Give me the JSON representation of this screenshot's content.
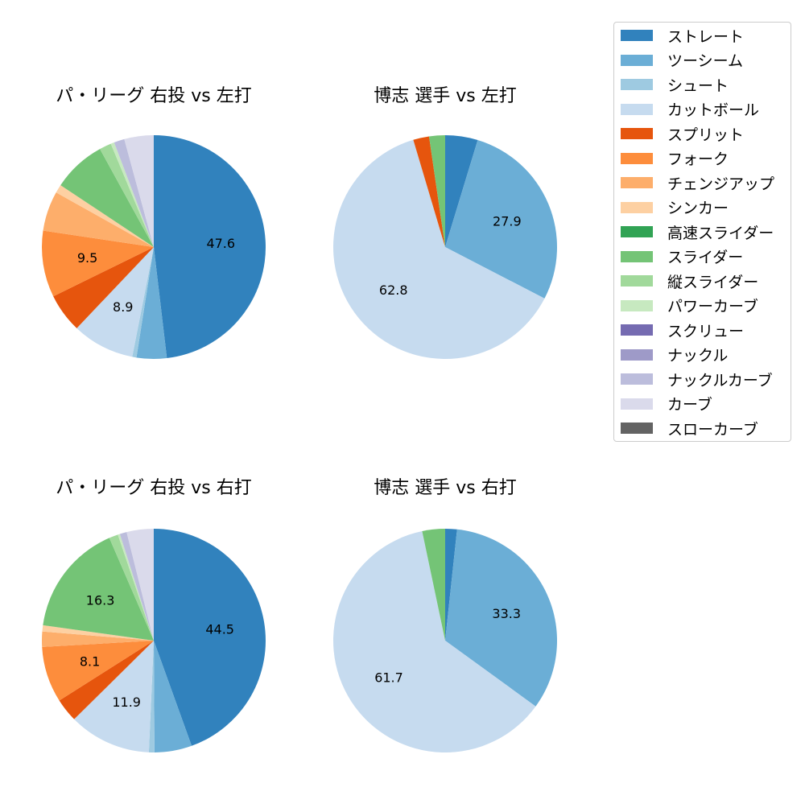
{
  "colors": {
    "ストレート": "#3182bd",
    "ツーシーム": "#6baed6",
    "シュート": "#9ecae1",
    "カットボール": "#c6dbef",
    "スプリット": "#e6550d",
    "フォーク": "#fd8d3c",
    "チェンジアップ": "#fdae6b",
    "シンカー": "#fdd0a2",
    "高速スライダー": "#31a354",
    "スライダー": "#74c476",
    "縦スライダー": "#a1d99b",
    "パワーカーブ": "#c7e9c0",
    "スクリュー": "#756bb1",
    "ナックル": "#9e9ac8",
    "ナックルカーブ": "#bcbddc",
    "カーブ": "#dadaeb",
    "スローカーブ": "#636363"
  },
  "legend": {
    "items": [
      "ストレート",
      "ツーシーム",
      "シュート",
      "カットボール",
      "スプリット",
      "フォーク",
      "チェンジアップ",
      "シンカー",
      "高速スライダー",
      "スライダー",
      "縦スライダー",
      "パワーカーブ",
      "スクリュー",
      "ナックル",
      "ナックルカーブ",
      "カーブ",
      "スローカーブ"
    ]
  },
  "chart_data": [
    {
      "type": "pie",
      "title": "パ・リーグ 右投 vs 左打",
      "start_angle_deg": 90,
      "direction": "clockwise",
      "slices": [
        {
          "name": "ストレート",
          "value": 47.6,
          "label": "47.6"
        },
        {
          "name": "ツーシーム",
          "value": 4.3
        },
        {
          "name": "シュート",
          "value": 0.6
        },
        {
          "name": "カットボール",
          "value": 8.9,
          "label": "8.9"
        },
        {
          "name": "スプリット",
          "value": 5.6
        },
        {
          "name": "フォーク",
          "value": 9.5,
          "label": "9.5"
        },
        {
          "name": "チェンジアップ",
          "value": 5.7
        },
        {
          "name": "シンカー",
          "value": 1.2
        },
        {
          "name": "スライダー",
          "value": 7.6
        },
        {
          "name": "縦スライダー",
          "value": 1.7
        },
        {
          "name": "パワーカーブ",
          "value": 0.5
        },
        {
          "name": "ナックルカーブ",
          "value": 1.5
        },
        {
          "name": "カーブ",
          "value": 4.2
        }
      ]
    },
    {
      "type": "pie",
      "title": "博志 選手 vs 左打",
      "start_angle_deg": 90,
      "direction": "clockwise",
      "slices": [
        {
          "name": "ストレート",
          "value": 4.7
        },
        {
          "name": "ツーシーム",
          "value": 27.9,
          "label": "27.9"
        },
        {
          "name": "カットボール",
          "value": 62.8,
          "label": "62.8"
        },
        {
          "name": "スプリット",
          "value": 2.3
        },
        {
          "name": "スライダー",
          "value": 2.3
        }
      ]
    },
    {
      "type": "pie",
      "title": "パ・リーグ 右投 vs 右打",
      "start_angle_deg": 90,
      "direction": "clockwise",
      "slices": [
        {
          "name": "ストレート",
          "value": 44.5,
          "label": "44.5"
        },
        {
          "name": "ツーシーム",
          "value": 5.4
        },
        {
          "name": "シュート",
          "value": 0.8
        },
        {
          "name": "カットボール",
          "value": 11.9,
          "label": "11.9"
        },
        {
          "name": "スプリット",
          "value": 3.4
        },
        {
          "name": "フォーク",
          "value": 8.1,
          "label": "8.1"
        },
        {
          "name": "チェンジアップ",
          "value": 2.2
        },
        {
          "name": "シンカー",
          "value": 0.9
        },
        {
          "name": "スライダー",
          "value": 16.3,
          "label": "16.3"
        },
        {
          "name": "縦スライダー",
          "value": 1.3
        },
        {
          "name": "パワーカーブ",
          "value": 0.3
        },
        {
          "name": "ナックルカーブ",
          "value": 1.0
        },
        {
          "name": "カーブ",
          "value": 3.9
        }
      ]
    },
    {
      "type": "pie",
      "title": "博志 選手 vs 右打",
      "start_angle_deg": 90,
      "direction": "clockwise",
      "slices": [
        {
          "name": "ストレート",
          "value": 1.7
        },
        {
          "name": "ツーシーム",
          "value": 33.3,
          "label": "33.3"
        },
        {
          "name": "カットボール",
          "value": 61.7,
          "label": "61.7"
        },
        {
          "name": "スライダー",
          "value": 3.3
        }
      ]
    }
  ]
}
